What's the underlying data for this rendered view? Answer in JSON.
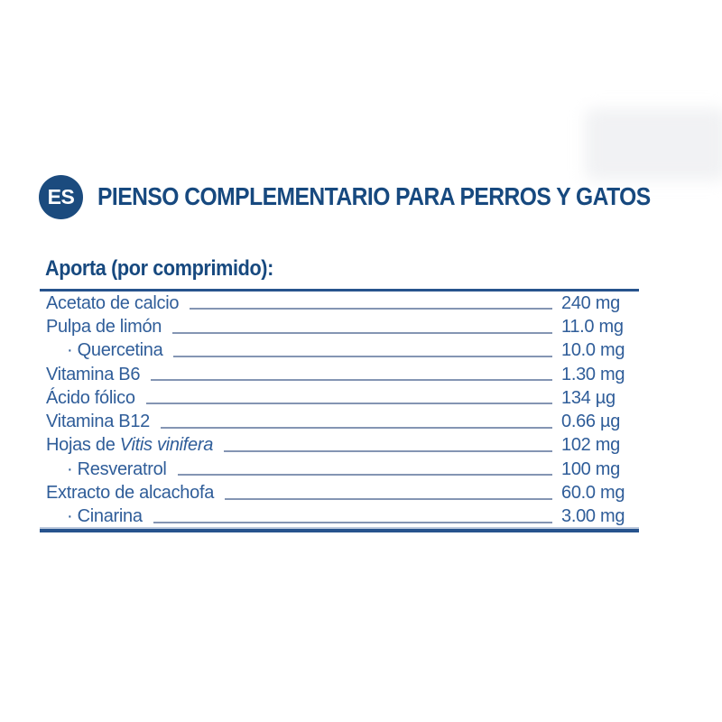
{
  "badge": {
    "label": "ES"
  },
  "header": {
    "title": "PIENSO COMPLEMENTARIO PARA PERROS Y GATOS"
  },
  "section": {
    "heading": "Aporta (por comprimido):"
  },
  "table": {
    "rows": [
      {
        "label": "Acetato de calcio",
        "value": "240 mg",
        "indent": false
      },
      {
        "label": "Pulpa de limón",
        "value": "11.0 mg",
        "indent": false
      },
      {
        "label": "· Quercetina",
        "value": "10.0 mg",
        "indent": true
      },
      {
        "label": "Vitamina B6",
        "value": "1.30 mg",
        "indent": false
      },
      {
        "label": "Ácido fólico",
        "value": "134 µg",
        "indent": false
      },
      {
        "label": "Vitamina B12",
        "value": "0.66 µg",
        "indent": false
      },
      {
        "label": "Hojas de ",
        "label_italic": "Vitis vinifera",
        "value": "102 mg",
        "indent": false
      },
      {
        "label": "· Resveratrol",
        "value": "100 mg",
        "indent": true
      },
      {
        "label": "Extracto de alcachofa",
        "value": "60.0 mg",
        "indent": false
      },
      {
        "label": "· Cinarina",
        "value": "3.00 mg",
        "indent": true
      }
    ]
  },
  "colors": {
    "brand_navy": "#1b4b7e",
    "title_blue": "#17497f",
    "row_ink": "#2f5d99",
    "leader_line": "#8495b3",
    "table_rule": "#27538d"
  }
}
